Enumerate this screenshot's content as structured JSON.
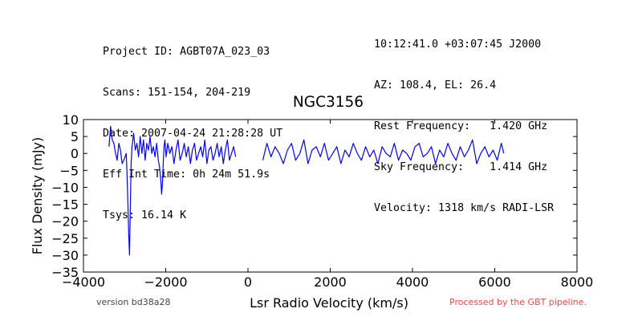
{
  "header": {
    "left": [
      "Project ID: AGBT07A_023_03",
      "Scans: 151-154, 204-219",
      "Date: 2007-04-24 21:28:28 UT",
      "Eff Int Time: 0h 24m 51.9s",
      "Tsys: 16.14 K"
    ],
    "right": [
      "10:12:41.0 +03:07:45 J2000",
      "AZ: 108.4, EL: 26.4",
      "Rest Frequency:   1.420 GHz",
      "Sky Frequency:    1.414 GHz",
      "Velocity: 1318 km/s RADI-LSR"
    ]
  },
  "footer": {
    "version": "version bd38a28",
    "pipeline": "Processed by the GBT pipeline.",
    "pipeline_color": "#ff4444"
  },
  "chart_data": {
    "type": "line",
    "title": "NGC3156",
    "xlabel": "Lsr Radio Velocity (km/s)",
    "ylabel": "Flux Density (mJy)",
    "xlim": [
      -4000,
      8000
    ],
    "ylim": [
      -35,
      10
    ],
    "xticks": [
      -4000,
      -2000,
      0,
      2000,
      4000,
      6000,
      8000
    ],
    "xtick_labels": [
      "−4000",
      "−2000",
      "0",
      "2000",
      "4000",
      "6000",
      "8000"
    ],
    "yticks": [
      10,
      5,
      0,
      -5,
      -10,
      -15,
      -20,
      -25,
      -30,
      -35
    ],
    "ytick_labels": [
      "10",
      "5",
      "0",
      "−5",
      "−10",
      "−15",
      "−20",
      "−25",
      "−30",
      "−35"
    ],
    "grid": false,
    "series_color": "#0000ff",
    "series": [
      {
        "x": [
          -3380,
          -3340,
          -3300,
          -3260,
          -3220,
          -3180,
          -3140,
          -3100,
          -3060,
          -3020,
          -2990,
          -2960,
          -2940,
          -2920,
          -2900,
          -2880,
          -2860,
          -2840,
          -2820,
          -2780,
          -2740,
          -2700,
          -2660,
          -2620,
          -2580,
          -2540,
          -2500,
          -2460,
          -2420,
          -2380,
          -2340,
          -2300,
          -2260,
          -2220,
          -2180,
          -2150,
          -2120,
          -2100,
          -2080,
          -2060,
          -2040,
          -2020,
          -1990,
          -1950,
          -1900,
          -1850,
          -1800,
          -1750,
          -1700,
          -1650,
          -1600,
          -1550,
          -1500,
          -1450,
          -1400,
          -1350,
          -1300,
          -1250,
          -1200,
          -1150,
          -1100,
          -1050,
          -1000,
          -950,
          -900,
          -850,
          -800,
          -750,
          -700,
          -650,
          -600,
          -550,
          -500,
          -450,
          -400,
          -350,
          -300
        ],
        "y": [
          2,
          8,
          4,
          3,
          0,
          -2,
          3,
          1,
          -3,
          -2,
          -1,
          0,
          -6,
          -14,
          -24,
          -30,
          -16,
          -3,
          2,
          6,
          1,
          3,
          -1,
          5,
          0,
          4,
          -2,
          3,
          1,
          5,
          0,
          2,
          -1,
          3,
          -2,
          -4,
          -8,
          -12,
          -9,
          -3,
          2,
          4,
          -1,
          3,
          0,
          2,
          -3,
          1,
          4,
          -2,
          0,
          3,
          -1,
          2,
          -3,
          1,
          3,
          -2,
          0,
          2,
          -1,
          4,
          -3,
          1,
          2,
          -2,
          0,
          3,
          -1,
          2,
          -3,
          1,
          4,
          -2,
          0,
          2,
          -1
        ]
      },
      {
        "x": [
          360,
          460,
          560,
          660,
          760,
          860,
          960,
          1060,
          1160,
          1260,
          1360,
          1460,
          1560,
          1660,
          1760,
          1860,
          1960,
          2060,
          2160,
          2260,
          2360,
          2460,
          2560,
          2660,
          2760,
          2860,
          2960,
          3060,
          3160,
          3260,
          3360,
          3460,
          3560,
          3660,
          3760,
          3860,
          3960,
          4060,
          4160,
          4260,
          4360,
          4460,
          4560,
          4660,
          4760,
          4860,
          4960,
          5060,
          5160,
          5260,
          5360,
          5460,
          5560,
          5660,
          5760,
          5860,
          5960,
          6060,
          6160,
          6220
        ],
        "y": [
          -2,
          3,
          -1,
          2,
          0,
          -3,
          1,
          3,
          -2,
          0,
          4,
          -3,
          1,
          2,
          -1,
          3,
          -2,
          0,
          2,
          -3,
          1,
          -1,
          3,
          0,
          -2,
          2,
          -1,
          1,
          -3,
          2,
          0,
          -1,
          3,
          -2,
          1,
          0,
          -2,
          2,
          3,
          -1,
          0,
          2,
          -3,
          1,
          -1,
          3,
          0,
          -2,
          2,
          -1,
          1,
          4,
          -3,
          0,
          2,
          -1,
          1,
          -2,
          3,
          0
        ]
      }
    ]
  }
}
